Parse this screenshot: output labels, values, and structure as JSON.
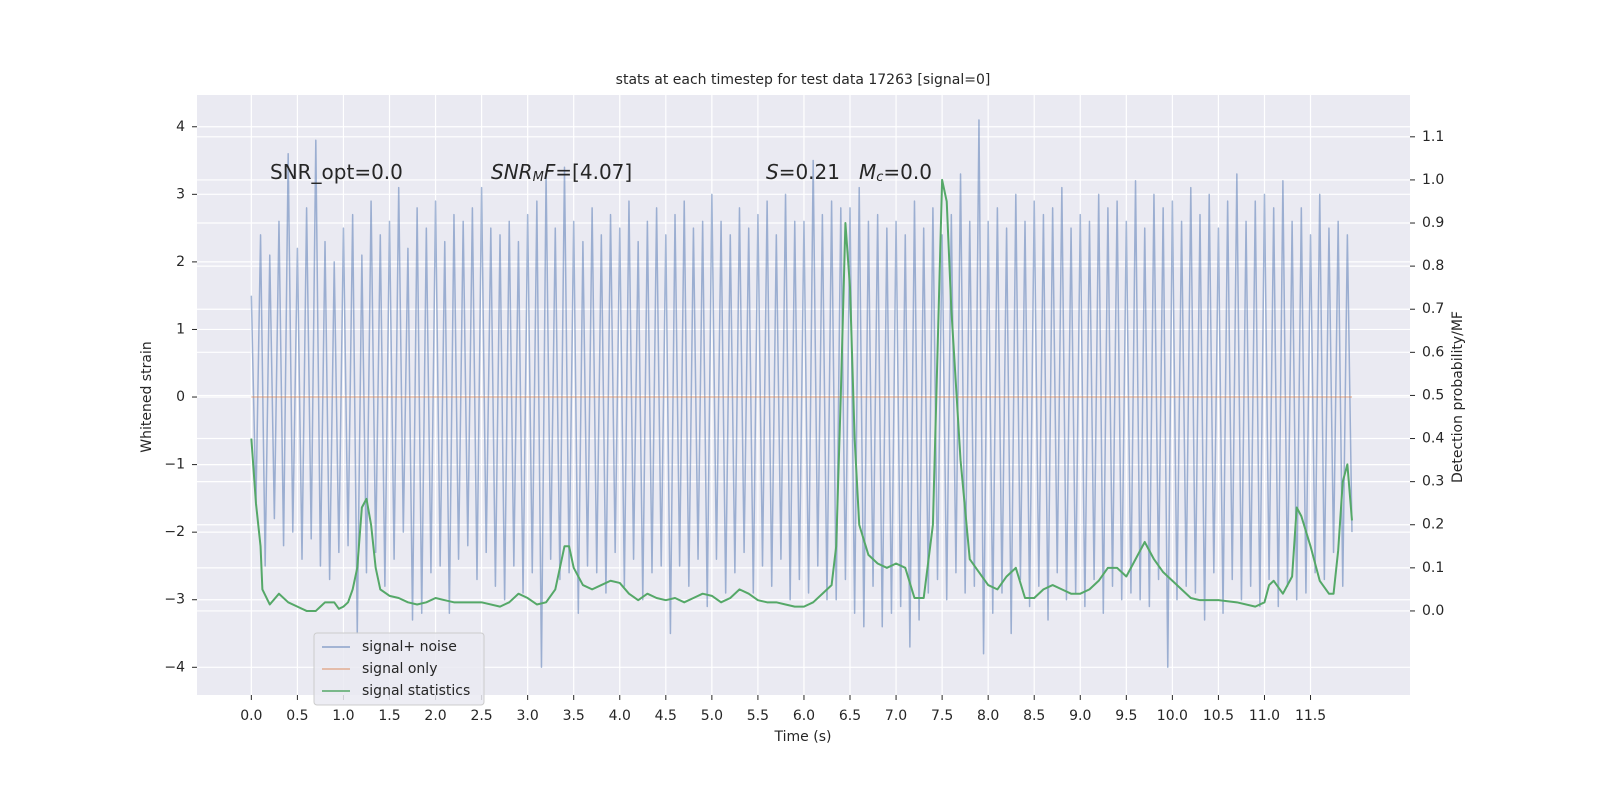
{
  "chart_data": {
    "type": "line",
    "title": "stats at each timestep for test data 17263 [signal=0]",
    "xlabel": "Time (s)",
    "ylabel": "Whitened strain",
    "y2label": "Detection probability/MF",
    "annotations": [
      [
        "SNR_opt=0.0"
      ],
      [
        "SNR",
        "M",
        "F",
        "=[4.07]"
      ],
      [
        "S",
        "=0.21",
        "M",
        "c",
        "=0.0"
      ]
    ],
    "xlim": [
      -0.59,
      12.58
    ],
    "ylim": [
      -4.41,
      4.47
    ],
    "y2lim": [
      -0.195,
      1.197
    ],
    "xticks": [
      {
        "value": 0,
        "label": "0.0"
      },
      0.5,
      {
        "value": 1,
        "label": "1.0"
      },
      1.5,
      {
        "value": 2,
        "label": "2.0"
      },
      2.5,
      {
        "value": 3,
        "label": "3.0"
      },
      3.5,
      {
        "value": 4,
        "label": "4.0"
      },
      4.5,
      {
        "value": 5,
        "label": "5.0"
      },
      5.5,
      {
        "value": 6,
        "label": "6.0"
      },
      6.5,
      {
        "value": 7,
        "label": "7.0"
      },
      7.5,
      {
        "value": 8,
        "label": "8.0"
      },
      8.5,
      {
        "value": 9,
        "label": "9.0"
      },
      9.5,
      {
        "value": 10,
        "label": "10.0"
      },
      10.5,
      {
        "value": 11,
        "label": "11.0"
      },
      11.5
    ],
    "yticks": [
      {
        "value": -4,
        "label": "−4"
      },
      {
        "value": -3,
        "label": "−3"
      },
      {
        "value": -2,
        "label": "−2"
      },
      {
        "value": -1,
        "label": "−1"
      },
      0,
      1,
      2,
      3,
      4
    ],
    "y2ticks": [
      {
        "value": 0,
        "label": "0.0"
      },
      0.1,
      0.2,
      0.3,
      0.4,
      0.5,
      0.6,
      0.7,
      0.8,
      0.9,
      {
        "value": 1,
        "label": "1.0"
      },
      1.1
    ],
    "grid": true,
    "legend": "lower left",
    "background": "#eaeaf2",
    "series": [
      {
        "name": "signal+ noise",
        "color": "#4c72b0",
        "axis": "y",
        "x": [
          0,
          0.05,
          0.1,
          0.15,
          0.2,
          0.25,
          0.3,
          0.35,
          0.4,
          0.45,
          0.5,
          0.55,
          0.6,
          0.65,
          0.7,
          0.75,
          0.8,
          0.85,
          0.9,
          0.95,
          1,
          1.05,
          1.1,
          1.15,
          1.2,
          1.25,
          1.3,
          1.35,
          1.4,
          1.45,
          1.5,
          1.55,
          1.6,
          1.65,
          1.7,
          1.75,
          1.8,
          1.85,
          1.9,
          1.95,
          2,
          2.05,
          2.1,
          2.15,
          2.2,
          2.25,
          2.3,
          2.35,
          2.4,
          2.45,
          2.5,
          2.55,
          2.6,
          2.65,
          2.7,
          2.75,
          2.8,
          2.85,
          2.9,
          2.95,
          3,
          3.05,
          3.1,
          3.15,
          3.2,
          3.25,
          3.3,
          3.35,
          3.4,
          3.45,
          3.5,
          3.55,
          3.6,
          3.65,
          3.7,
          3.75,
          3.8,
          3.85,
          3.9,
          3.95,
          4,
          4.05,
          4.1,
          4.15,
          4.2,
          4.25,
          4.3,
          4.35,
          4.4,
          4.45,
          4.5,
          4.55,
          4.6,
          4.65,
          4.7,
          4.75,
          4.8,
          4.85,
          4.9,
          4.95,
          5,
          5.05,
          5.1,
          5.15,
          5.2,
          5.25,
          5.3,
          5.35,
          5.4,
          5.45,
          5.5,
          5.55,
          5.6,
          5.65,
          5.7,
          5.75,
          5.8,
          5.85,
          5.9,
          5.95,
          6,
          6.05,
          6.1,
          6.15,
          6.2,
          6.25,
          6.3,
          6.35,
          6.4,
          6.45,
          6.5,
          6.55,
          6.6,
          6.65,
          6.7,
          6.75,
          6.8,
          6.85,
          6.9,
          6.95,
          7,
          7.05,
          7.1,
          7.15,
          7.2,
          7.25,
          7.3,
          7.35,
          7.4,
          7.45,
          7.5,
          7.55,
          7.6,
          7.65,
          7.7,
          7.75,
          7.8,
          7.85,
          7.9,
          7.95,
          8,
          8.05,
          8.1,
          8.15,
          8.2,
          8.25,
          8.3,
          8.35,
          8.4,
          8.45,
          8.5,
          8.55,
          8.6,
          8.65,
          8.7,
          8.75,
          8.8,
          8.85,
          8.9,
          8.95,
          9,
          9.05,
          9.1,
          9.15,
          9.2,
          9.25,
          9.3,
          9.35,
          9.4,
          9.45,
          9.5,
          9.55,
          9.6,
          9.65,
          9.7,
          9.75,
          9.8,
          9.85,
          9.9,
          9.95,
          10,
          10.05,
          10.1,
          10.15,
          10.2,
          10.25,
          10.3,
          10.35,
          10.4,
          10.45,
          10.5,
          10.55,
          10.6,
          10.65,
          10.7,
          10.75,
          10.8,
          10.85,
          10.9,
          10.95,
          11,
          11.05,
          11.1,
          11.15,
          11.2,
          11.25,
          11.3,
          11.35,
          11.4,
          11.45,
          11.5,
          11.55,
          11.6,
          11.65,
          11.7,
          11.75,
          11.8,
          11.85,
          11.9,
          11.95
        ],
        "values": [
          1.5,
          -1.6,
          2.4,
          -2.5,
          2.1,
          -1.8,
          2.6,
          -2.2,
          3.6,
          -2.0,
          2.2,
          -2.4,
          2.8,
          -2.1,
          3.8,
          -2.5,
          2.3,
          -2.7,
          2.0,
          -2.3,
          2.5,
          -2.2,
          2.7,
          -3.5,
          2.1,
          -2.6,
          2.9,
          -2.3,
          2.4,
          -2.8,
          2.6,
          -2.4,
          3.1,
          -2.0,
          2.2,
          -3.3,
          2.8,
          -3.2,
          2.5,
          -2.6,
          2.9,
          -2.5,
          2.3,
          -3.2,
          2.7,
          -2.4,
          2.6,
          -2.2,
          2.8,
          -2.7,
          3.1,
          -2.3,
          2.5,
          -2.8,
          2.4,
          -3.0,
          2.6,
          -2.5,
          2.3,
          -2.9,
          2.7,
          -2.6,
          2.9,
          -4.0,
          3.3,
          -2.4,
          2.5,
          -2.7,
          3.4,
          -2.6,
          2.6,
          -3.2,
          2.3,
          -2.5,
          2.8,
          -2.6,
          2.4,
          -2.9,
          2.7,
          -2.3,
          2.5,
          -2.8,
          2.9,
          -2.4,
          2.3,
          -3.0,
          2.6,
          -2.6,
          2.8,
          -2.5,
          2.4,
          -3.5,
          2.7,
          -2.5,
          2.9,
          -2.8,
          2.5,
          -2.4,
          2.6,
          -3.1,
          3.0,
          -2.4,
          2.6,
          -2.9,
          2.4,
          -2.6,
          2.8,
          -2.3,
          2.5,
          -2.9,
          2.7,
          -2.5,
          2.9,
          -2.8,
          2.4,
          -2.4,
          3.0,
          -3.0,
          2.6,
          -2.7,
          2.6,
          -2.9,
          3.5,
          -2.5,
          2.7,
          -3.0,
          2.9,
          -3.0,
          2.8,
          -2.7,
          2.8,
          -3.2,
          3.1,
          -3.4,
          2.6,
          -2.8,
          2.7,
          -3.4,
          2.5,
          -3.2,
          2.6,
          -3.1,
          2.4,
          -3.7,
          2.9,
          -3.3,
          2.5,
          -2.9,
          2.8,
          -2.7,
          2.4,
          -3.0,
          2.7,
          -2.6,
          3.3,
          -2.9,
          2.6,
          -2.8,
          4.1,
          -3.8,
          2.6,
          -3.2,
          2.8,
          -2.9,
          2.5,
          -3.5,
          3.0,
          -2.7,
          2.6,
          -3.1,
          2.9,
          -2.8,
          2.7,
          -3.3,
          2.8,
          -2.6,
          3.1,
          -3.0,
          2.5,
          -2.9,
          2.7,
          -3.1,
          2.6,
          -2.7,
          3.0,
          -3.2,
          2.8,
          -2.8,
          2.9,
          -3.0,
          2.6,
          -2.9,
          3.2,
          -3.0,
          2.5,
          -3.1,
          3.0,
          -2.7,
          2.8,
          -4.0,
          2.9,
          -3.0,
          2.6,
          -2.8,
          3.1,
          -2.9,
          2.7,
          -3.3,
          3.0,
          -2.6,
          2.5,
          -3.2,
          2.9,
          -2.7,
          3.3,
          -3.0,
          2.6,
          -2.8,
          2.9,
          -3.1,
          3.0,
          -2.7,
          2.8,
          -3.1,
          3.2,
          -2.8,
          2.6,
          -3.0,
          2.8,
          -2.9,
          2.4,
          -2.6,
          3.0,
          -2.7,
          2.5,
          -2.3,
          2.6,
          -2.8,
          2.4,
          -2.0
        ]
      },
      {
        "name": "signal only",
        "color": "#dd8452",
        "axis": "y",
        "x": [
          0,
          11.95
        ],
        "values": [
          0,
          0
        ]
      },
      {
        "name": "signal statistics",
        "color": "#55a868",
        "axis": "y2",
        "x": [
          0,
          0.05,
          0.1,
          0.12,
          0.2,
          0.3,
          0.4,
          0.5,
          0.6,
          0.7,
          0.75,
          0.8,
          0.9,
          0.95,
          1,
          1.05,
          1.1,
          1.15,
          1.2,
          1.25,
          1.3,
          1.35,
          1.4,
          1.5,
          1.6,
          1.7,
          1.8,
          1.9,
          2,
          2.1,
          2.2,
          2.3,
          2.5,
          2.7,
          2.8,
          2.9,
          3,
          3.1,
          3.2,
          3.3,
          3.4,
          3.45,
          3.5,
          3.6,
          3.7,
          3.8,
          3.9,
          4,
          4.1,
          4.2,
          4.3,
          4.4,
          4.5,
          4.6,
          4.7,
          4.8,
          4.9,
          5,
          5.1,
          5.2,
          5.3,
          5.4,
          5.5,
          5.6,
          5.7,
          5.8,
          5.9,
          6,
          6.1,
          6.2,
          6.3,
          6.35,
          6.4,
          6.45,
          6.5,
          6.55,
          6.6,
          6.7,
          6.8,
          6.9,
          7,
          7.1,
          7.2,
          7.3,
          7.4,
          7.5,
          7.55,
          7.6,
          7.7,
          7.8,
          7.9,
          8,
          8.1,
          8.2,
          8.3,
          8.4,
          8.5,
          8.6,
          8.7,
          8.8,
          8.9,
          9,
          9.1,
          9.2,
          9.3,
          9.4,
          9.5,
          9.6,
          9.7,
          9.8,
          9.9,
          10,
          10.1,
          10.2,
          10.3,
          10.5,
          10.7,
          10.9,
          11,
          11.05,
          11.1,
          11.2,
          11.3,
          11.35,
          11.4,
          11.5,
          11.6,
          11.7,
          11.75,
          11.8,
          11.85,
          11.9,
          11.95
        ],
        "values": [
          0.4,
          0.25,
          0.15,
          0.05,
          0.015,
          0.04,
          0.02,
          0.01,
          0.0,
          0.0,
          0.01,
          0.02,
          0.02,
          0.005,
          0.01,
          0.02,
          0.05,
          0.1,
          0.24,
          0.26,
          0.2,
          0.1,
          0.05,
          0.035,
          0.03,
          0.02,
          0.015,
          0.02,
          0.03,
          0.025,
          0.02,
          0.02,
          0.02,
          0.01,
          0.02,
          0.04,
          0.03,
          0.015,
          0.02,
          0.05,
          0.15,
          0.15,
          0.1,
          0.06,
          0.05,
          0.06,
          0.07,
          0.065,
          0.04,
          0.025,
          0.04,
          0.03,
          0.025,
          0.03,
          0.02,
          0.03,
          0.04,
          0.035,
          0.02,
          0.03,
          0.05,
          0.04,
          0.025,
          0.02,
          0.02,
          0.015,
          0.01,
          0.01,
          0.02,
          0.04,
          0.06,
          0.15,
          0.5,
          0.9,
          0.75,
          0.4,
          0.2,
          0.13,
          0.11,
          0.1,
          0.11,
          0.1,
          0.03,
          0.03,
          0.2,
          1.0,
          0.95,
          0.7,
          0.35,
          0.12,
          0.09,
          0.06,
          0.05,
          0.08,
          0.1,
          0.03,
          0.03,
          0.05,
          0.06,
          0.05,
          0.04,
          0.04,
          0.05,
          0.07,
          0.1,
          0.1,
          0.08,
          0.12,
          0.16,
          0.12,
          0.09,
          0.07,
          0.05,
          0.03,
          0.025,
          0.025,
          0.02,
          0.01,
          0.02,
          0.06,
          0.07,
          0.04,
          0.08,
          0.24,
          0.22,
          0.15,
          0.07,
          0.04,
          0.04,
          0.14,
          0.3,
          0.34,
          0.21
        ]
      }
    ]
  }
}
